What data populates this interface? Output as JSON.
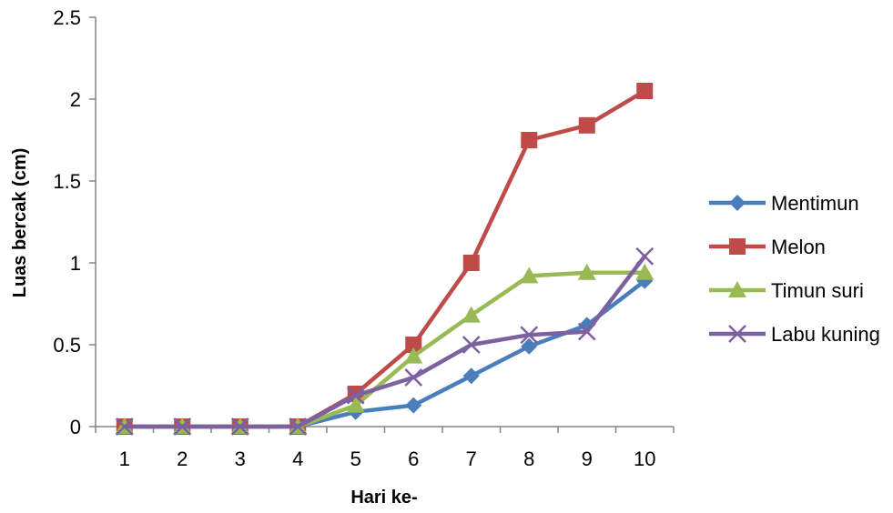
{
  "chart_data": {
    "type": "line",
    "title": "",
    "xlabel": "Hari ke-",
    "ylabel": "Luas bercak (cm)",
    "categories": [
      "1",
      "2",
      "3",
      "4",
      "5",
      "6",
      "7",
      "8",
      "9",
      "10"
    ],
    "ylim": [
      0,
      2.5
    ],
    "yticks": [
      "0",
      "0.5",
      "1",
      "1.5",
      "2",
      "2.5"
    ],
    "grid": false,
    "legend_position": "right",
    "series": [
      {
        "name": "Mentimun",
        "color": "#4a7ebb",
        "marker": "diamond",
        "values": [
          0,
          0,
          0,
          0,
          0.09,
          0.13,
          0.31,
          0.49,
          0.62,
          0.89
        ]
      },
      {
        "name": "Melon",
        "color": "#be4b48",
        "marker": "square",
        "values": [
          0,
          0,
          0,
          0,
          0.2,
          0.5,
          1.0,
          1.75,
          1.84,
          2.05
        ]
      },
      {
        "name": "Timun suri",
        "color": "#98b954",
        "marker": "triangle",
        "values": [
          0,
          0,
          0,
          0,
          0.13,
          0.43,
          0.68,
          0.92,
          0.94,
          0.94
        ]
      },
      {
        "name": "Labu kuning",
        "color": "#7d60a0",
        "marker": "x",
        "values": [
          0,
          0,
          0,
          0,
          0.19,
          0.3,
          0.5,
          0.56,
          0.58,
          1.04
        ]
      }
    ]
  }
}
